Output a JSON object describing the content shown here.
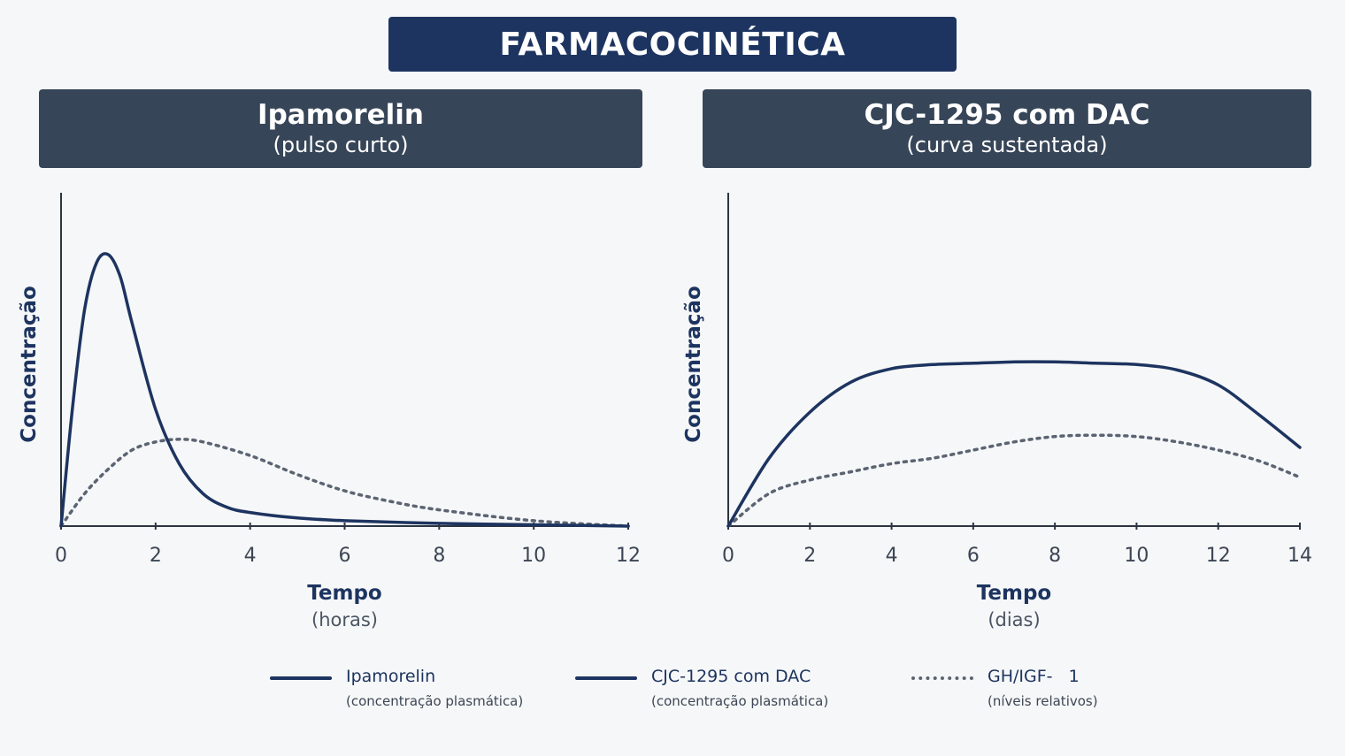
{
  "page_title": "FARMACOCINÉTICA",
  "colors": {
    "navy": "#1d3460",
    "panel": "#374558",
    "dotted": "#5b6472",
    "axis": "#2b3442"
  },
  "chart_data": [
    {
      "type": "line",
      "title": "Ipamorelin",
      "subtitle": "(pulso curto)",
      "xlabel": "Tempo",
      "xunit": "(horas)",
      "ylabel": "Concentração",
      "xlim": [
        0,
        12
      ],
      "xticks": [
        "0",
        "2",
        "4",
        "6",
        "8",
        "10",
        "12"
      ],
      "ylim": [
        0,
        1
      ],
      "grid": false,
      "series": [
        {
          "name": "Ipamorelin",
          "style": "solid",
          "x": [
            0,
            0.25,
            0.5,
            0.75,
            1.0,
            1.25,
            1.5,
            2.0,
            2.5,
            3.0,
            3.5,
            4.0,
            5.0,
            6.0,
            8.0,
            10.0,
            12.0
          ],
          "y": [
            0,
            0.45,
            0.8,
            0.97,
            1.0,
            0.92,
            0.75,
            0.43,
            0.23,
            0.12,
            0.07,
            0.05,
            0.03,
            0.02,
            0.01,
            0.005,
            0.0
          ]
        },
        {
          "name": "GH/IGF-1",
          "style": "dotted",
          "x": [
            0,
            0.5,
            1.0,
            1.5,
            2.0,
            2.5,
            3.0,
            4.0,
            5.0,
            6.0,
            7.0,
            8.0,
            10.0,
            12.0
          ],
          "y": [
            0,
            0.12,
            0.21,
            0.28,
            0.31,
            0.32,
            0.31,
            0.26,
            0.19,
            0.13,
            0.09,
            0.06,
            0.02,
            0.0
          ]
        }
      ]
    },
    {
      "type": "line",
      "title": "CJC-1295 com DAC",
      "subtitle": "(curva sustentada)",
      "xlabel": "Tempo",
      "xunit": "(dias)",
      "ylabel": "Concentração",
      "xlim": [
        0,
        14
      ],
      "xticks": [
        "0",
        "2",
        "4",
        "6",
        "8",
        "10",
        "12",
        "14"
      ],
      "ylim": [
        0,
        1
      ],
      "grid": false,
      "series": [
        {
          "name": "CJC-1295 com DAC",
          "style": "solid",
          "x": [
            0,
            1,
            2,
            3,
            4,
            5,
            6,
            7,
            8,
            9,
            10,
            11,
            12,
            13,
            14
          ],
          "y": [
            0,
            0.25,
            0.42,
            0.53,
            0.58,
            0.595,
            0.6,
            0.605,
            0.605,
            0.6,
            0.595,
            0.575,
            0.52,
            0.41,
            0.29
          ]
        },
        {
          "name": "GH/IGF-1",
          "style": "dotted",
          "x": [
            0,
            1,
            2,
            3,
            4,
            5,
            6,
            7,
            8,
            9,
            10,
            11,
            12,
            13,
            14
          ],
          "y": [
            0,
            0.12,
            0.17,
            0.2,
            0.23,
            0.25,
            0.28,
            0.31,
            0.33,
            0.335,
            0.33,
            0.31,
            0.28,
            0.24,
            0.18
          ]
        }
      ]
    }
  ],
  "legend": [
    {
      "name": "Ipamorelin",
      "desc": "(concentração plasmática)",
      "style": "solid"
    },
    {
      "name": "CJC-1295 com DAC",
      "desc": "(concentração plasmática)",
      "style": "solid"
    },
    {
      "name": "GH/IGF-   1",
      "desc": "(níveis relativos)",
      "style": "dotted"
    }
  ]
}
